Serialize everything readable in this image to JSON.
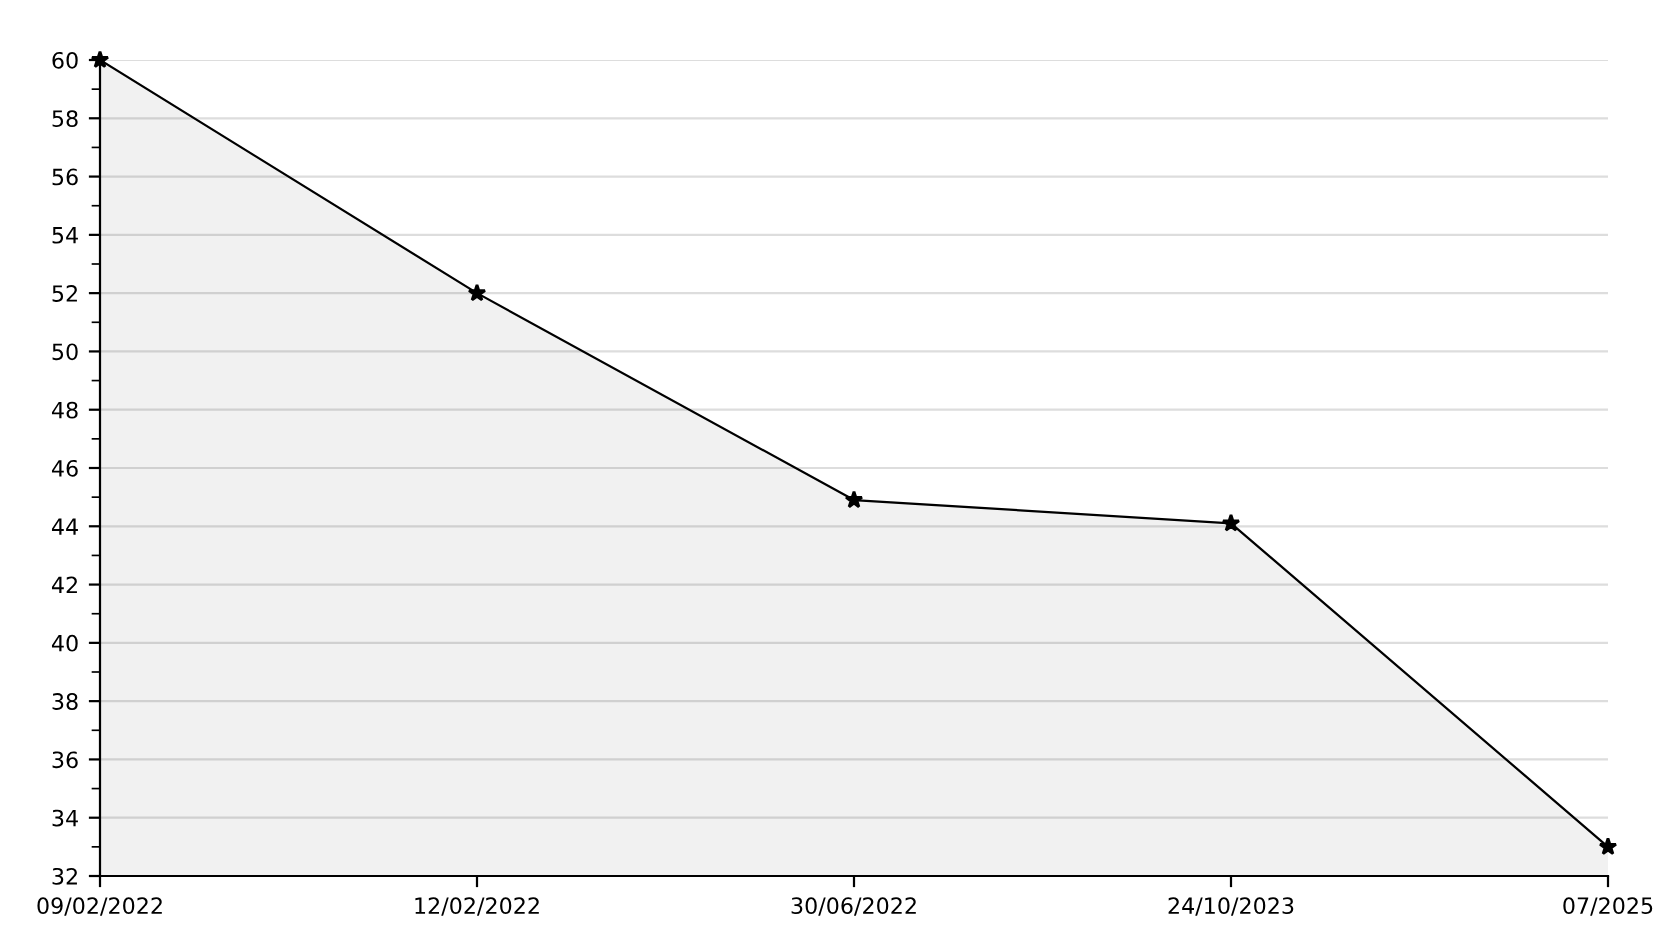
{
  "chart_data": {
    "type": "area",
    "categories": [
      "09/02/2022",
      "12/02/2022",
      "30/06/2022",
      "24/10/2023",
      "07/2025"
    ],
    "series": [
      {
        "color": "#000000",
        "values": [
          60,
          52,
          44.9,
          44.1,
          33
        ]
      }
    ],
    "ylim": [
      32,
      60
    ],
    "yticks": [
      32,
      34,
      36,
      38,
      40,
      42,
      44,
      46,
      48,
      50,
      52,
      54,
      56,
      58,
      60
    ],
    "grid": "y",
    "marker": "star",
    "line_style": "solid"
  }
}
